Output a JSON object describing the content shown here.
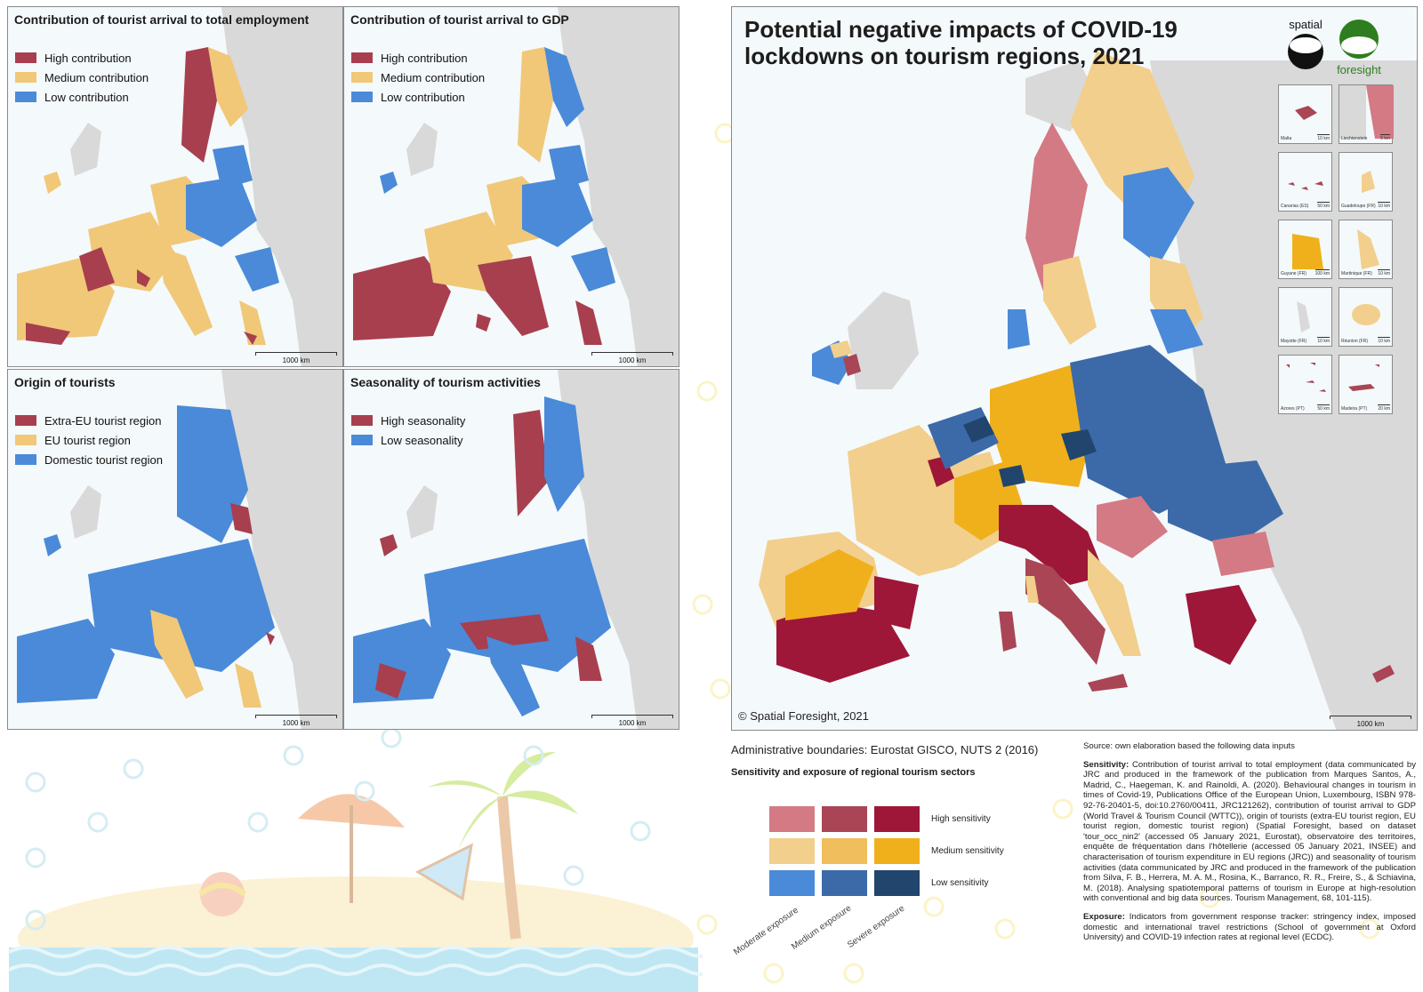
{
  "colors": {
    "sea": "#f4f9fb",
    "land_grey": "#d9d9d9",
    "border": "#8a8a8a",
    "high_red": "#a73f4f",
    "medium_yellow": "#f0c878",
    "low_blue": "#4a8ad8",
    "matrix": [
      [
        "#d47a85",
        "#a94554",
        "#9e1738"
      ],
      [
        "#f2cf8c",
        "#f0be5c",
        "#f0b01c"
      ],
      [
        "#4a8ad8",
        "#3c6aa8",
        "#22456e"
      ]
    ]
  },
  "panels": [
    {
      "title": "Contribution of tourist arrival to total employment",
      "legend": [
        {
          "label": "High contribution",
          "color": "#a73f4f"
        },
        {
          "label": "Medium contribution",
          "color": "#f0c878"
        },
        {
          "label": "Low contribution",
          "color": "#4a8ad8"
        }
      ],
      "scale": "1000 km"
    },
    {
      "title": "Contribution of tourist arrival to GDP",
      "legend": [
        {
          "label": "High contribution",
          "color": "#a73f4f"
        },
        {
          "label": "Medium contribution",
          "color": "#f0c878"
        },
        {
          "label": "Low contribution",
          "color": "#4a8ad8"
        }
      ],
      "scale": "1000 km"
    },
    {
      "title": "Origin of tourists",
      "legend": [
        {
          "label": "Extra-EU tourist region",
          "color": "#a73f4f"
        },
        {
          "label": "EU tourist region",
          "color": "#f0c878"
        },
        {
          "label": "Domestic tourist region",
          "color": "#4a8ad8"
        }
      ],
      "scale": "1000 km"
    },
    {
      "title": "Seasonality of tourism activities",
      "legend": [
        {
          "label": "High seasonality",
          "color": "#a73f4f"
        },
        {
          "label": "Low seasonality",
          "color": "#4a8ad8"
        }
      ],
      "scale": "1000 km"
    }
  ],
  "main_map": {
    "title_line1": "Potential negative impacts of COVID-19",
    "title_line2": "lockdowns on tourism regions, 2021",
    "logo_spatial": "spatial",
    "logo_foresight": "foresight",
    "copyright": "© Spatial Foresight, 2021",
    "scale": "1000 km",
    "insets": [
      {
        "name": "Malta",
        "km": "10 km"
      },
      {
        "name": "Liechtenstein",
        "km": "5 km"
      },
      {
        "name": "Canarias (ES)",
        "km": "50 km"
      },
      {
        "name": "Guadeloupe (FR)",
        "km": "10 km"
      },
      {
        "name": "Guyane (FR)",
        "km": "100 km"
      },
      {
        "name": "Martinique (FR)",
        "km": "10 km"
      },
      {
        "name": "Mayotte (FR)",
        "km": "10 km"
      },
      {
        "name": "Réunion (FR)",
        "km": "10 km"
      },
      {
        "name": "Azores (PT)",
        "km": "50 km"
      },
      {
        "name": "Madeira (PT)",
        "km": "20 km"
      }
    ]
  },
  "admin_boundaries": "Administrative boundaries: Eurostat GISCO, NUTS 2 (2016)",
  "matrix": {
    "title": "Sensitivity and exposure of regional tourism sectors",
    "rows": [
      "High sensitivity",
      "Medium sensitivity",
      "Low sensitivity"
    ],
    "cols": [
      "Moderate exposure",
      "Medium exposure",
      "Severe exposure"
    ]
  },
  "sources": {
    "intro": "Source: own elaboration based the following data inputs",
    "sensitivity_label": "Sensitivity:",
    "sensitivity_text": "Contribution of tourist arrival to total employment (data communicated by JRC and produced in the framework of the publication from Marques Santos, A., Madrid, C., Haegeman, K. and Rainoldi, A. (2020). Behavioural changes in tourism in times of Covid-19, Publications Office of the European Union, Luxembourg, ISBN 978-92-76-20401-5, doi:10.2760/00411, JRC121262), contribution of tourist arrival to GDP (World Travel & Tourism Council (WTTC)), origin of tourists (extra-EU tourist region, EU tourist region, domestic tourist region) (Spatial Foresight, based on dataset 'tour_occ_nin2' (accessed 05 January 2021, Eurostat), observatoire des territoires, enquête de fréquentation dans l'hôtellerie (accessed 05 January 2021, INSEE) and characterisation of tourism expenditure in EU regions (JRC)) and seasonality of tourism activities (data communicated by JRC and produced in the framework of the publication from Silva, F. B., Herrera, M. A. M., Rosina, K., Barranco, R. R., Freire, S., & Schiavina, M. (2018). Analysing spatiotemporal patterns of tourism in Europe at high-resolution with conventional and big data sources. Tourism Management, 68, 101-115).",
    "exposure_label": "Exposure:",
    "exposure_text": "Indicators from government response tracker: stringency index, imposed domestic and international travel restrictions (School of government at Oxford University) and COVID-19 infection rates at regional level (ECDC)."
  }
}
